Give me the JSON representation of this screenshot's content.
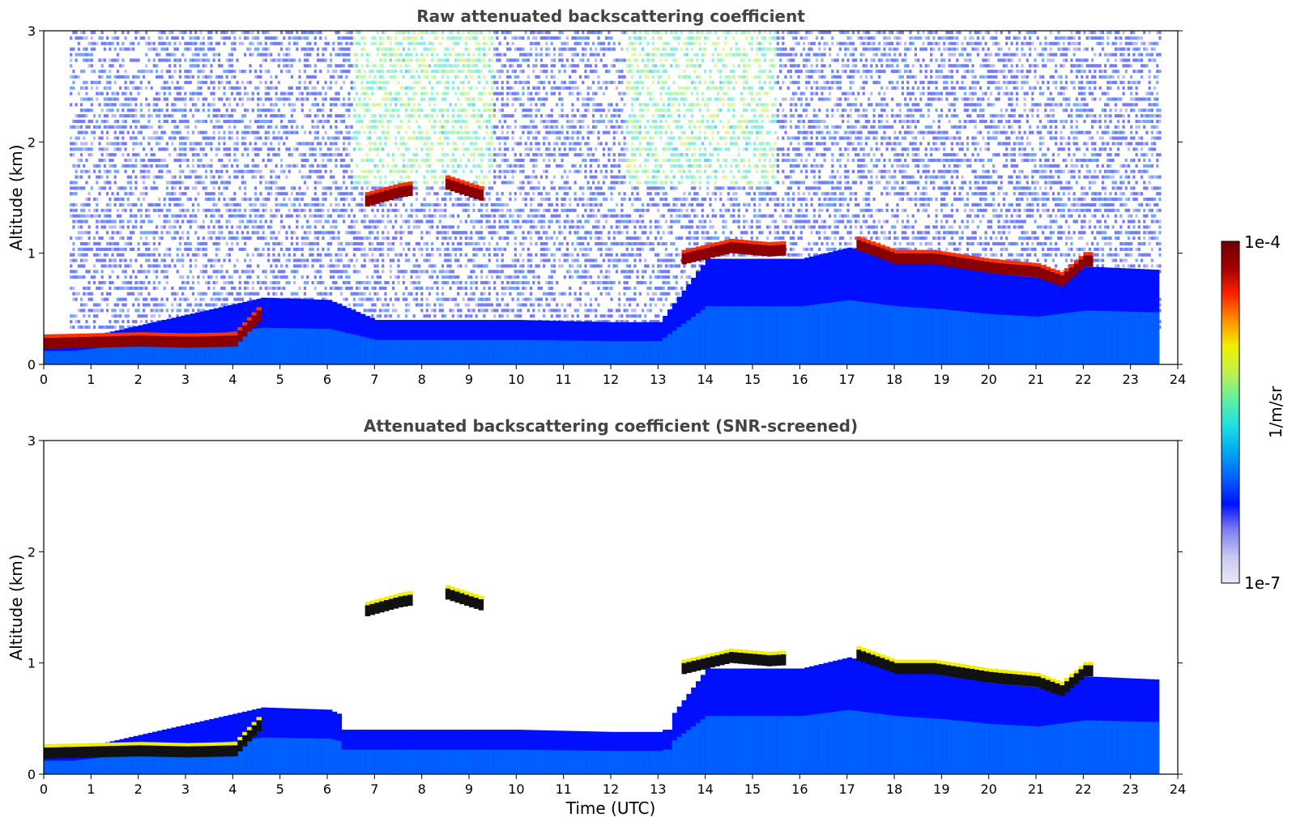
{
  "chart_data": [
    {
      "type": "heatmap",
      "title": "Raw attenuated backscattering coefficient",
      "xlabel": "",
      "ylabel": "Altitude (km)",
      "xlim": [
        0,
        24
      ],
      "ylim": [
        0,
        3
      ],
      "xticks": [
        "0",
        "1",
        "2",
        "3",
        "4",
        "5",
        "6",
        "7",
        "8",
        "9",
        "10",
        "11",
        "12",
        "13",
        "14",
        "15",
        "16",
        "17",
        "18",
        "19",
        "20",
        "21",
        "22",
        "23",
        "24"
      ],
      "yticks": [
        "0",
        "1",
        "2",
        "3"
      ],
      "mode": "raw",
      "series": [
        {
          "name": "cloud_base_km",
          "x": [
            0.0,
            1.0,
            2.0,
            3.0,
            4.0,
            6.8,
            7.5,
            8.5,
            9.0,
            13.5,
            14.5,
            15.3,
            17.2,
            18.0,
            18.8,
            20.0,
            21.0,
            21.5,
            22.0
          ],
          "values": [
            0.14,
            0.15,
            0.16,
            0.15,
            0.16,
            1.42,
            1.5,
            1.57,
            1.5,
            0.9,
            1.0,
            0.97,
            1.02,
            0.9,
            0.9,
            0.82,
            0.78,
            0.7,
            0.88
          ]
        },
        {
          "name": "boundary_layer_top_km",
          "x": [
            0.0,
            0.6,
            4.6,
            6.0,
            7.0,
            10.0,
            12.0,
            13.0,
            14.0,
            16.0,
            17.0,
            18.0,
            19.0,
            20.0,
            21.0,
            22.0,
            23.6
          ],
          "values": [
            0.22,
            0.22,
            0.6,
            0.58,
            0.4,
            0.4,
            0.38,
            0.38,
            0.95,
            0.95,
            1.05,
            0.95,
            0.9,
            0.82,
            0.78,
            0.88,
            0.85
          ]
        }
      ]
    },
    {
      "type": "heatmap",
      "title": "Attenuated backscattering coefficient (SNR-screened)",
      "xlabel": "Time (UTC)",
      "ylabel": "Altitude (km)",
      "xlim": [
        0,
        24
      ],
      "ylim": [
        0,
        3
      ],
      "xticks": [
        "0",
        "1",
        "2",
        "3",
        "4",
        "5",
        "6",
        "7",
        "8",
        "9",
        "10",
        "11",
        "12",
        "13",
        "14",
        "15",
        "16",
        "17",
        "18",
        "19",
        "20",
        "21",
        "22",
        "23",
        "24"
      ],
      "yticks": [
        "0",
        "1",
        "2",
        "3"
      ],
      "mode": "screened",
      "series": [
        {
          "name": "cloud_base_km",
          "x": [
            0.0,
            1.0,
            2.0,
            3.0,
            4.0,
            6.8,
            7.5,
            8.5,
            9.0,
            13.5,
            14.5,
            15.3,
            17.2,
            18.0,
            18.8,
            20.0,
            21.0,
            21.5,
            22.0
          ],
          "values": [
            0.14,
            0.15,
            0.16,
            0.15,
            0.16,
            1.42,
            1.5,
            1.57,
            1.5,
            0.9,
            1.0,
            0.97,
            1.02,
            0.9,
            0.9,
            0.82,
            0.78,
            0.7,
            0.88
          ]
        },
        {
          "name": "boundary_layer_top_km",
          "x": [
            0.0,
            0.6,
            4.6,
            6.0,
            7.0,
            10.0,
            12.0,
            13.0,
            14.0,
            16.0,
            17.0,
            18.0,
            19.0,
            20.0,
            21.0,
            22.0,
            23.6
          ],
          "values": [
            0.22,
            0.22,
            0.6,
            0.58,
            0.4,
            0.4,
            0.38,
            0.38,
            0.95,
            0.95,
            1.05,
            0.95,
            0.9,
            0.82,
            0.78,
            0.88,
            0.85
          ]
        }
      ]
    }
  ],
  "colorbar": {
    "label": "1/m/sr",
    "max_label": "1e-4",
    "min_label": "1e-7",
    "colors": [
      "#e8e8f8",
      "#c8c8f0",
      "#8080f0",
      "#0010ff",
      "#0060ff",
      "#00a8f0",
      "#20e0e0",
      "#60f0a0",
      "#c0f050",
      "#f0f000",
      "#ff9000",
      "#ff2000",
      "#a00000",
      "#700000"
    ]
  }
}
